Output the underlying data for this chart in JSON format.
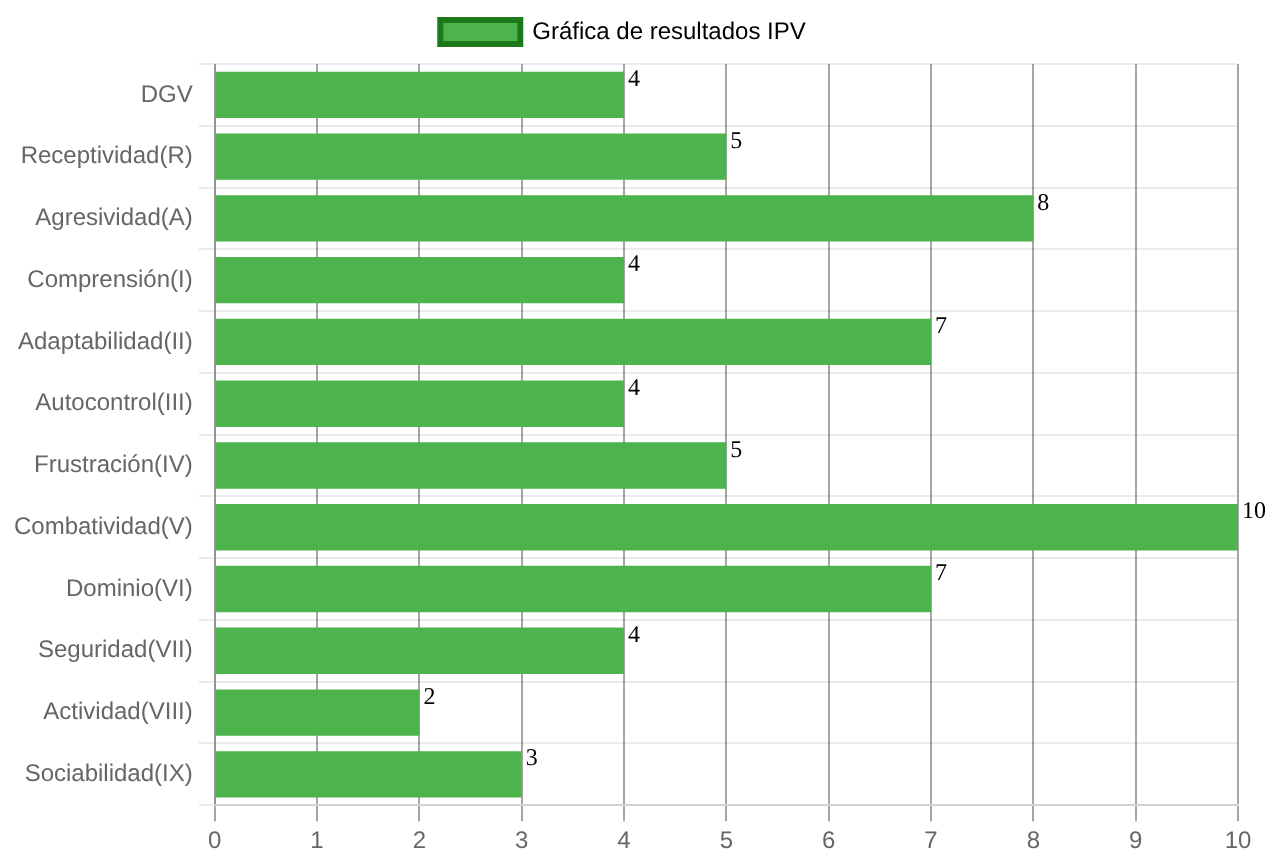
{
  "chart_data": {
    "type": "bar",
    "orientation": "horizontal",
    "categories": [
      "DGV",
      "Receptividad(R)",
      "Agresividad(A)",
      "Comprensión(I)",
      "Adaptabilidad(II)",
      "Autocontrol(III)",
      "Frustración(IV)",
      "Combatividad(V)",
      "Dominio(VI)",
      "Seguridad(VII)",
      "Actividad(VIII)",
      "Sociabilidad(IX)"
    ],
    "series": [
      {
        "name": "Gráfica de resultados IPV",
        "color": "#4db34d",
        "values": [
          4,
          5,
          8,
          4,
          7,
          4,
          5,
          10,
          7,
          4,
          2,
          3
        ]
      }
    ],
    "xlim": [
      0,
      10
    ],
    "xticks": [
      0,
      1,
      2,
      3,
      4,
      5,
      6,
      7,
      8,
      9,
      10
    ],
    "grid": true,
    "legend": "top",
    "data_labels": true
  }
}
